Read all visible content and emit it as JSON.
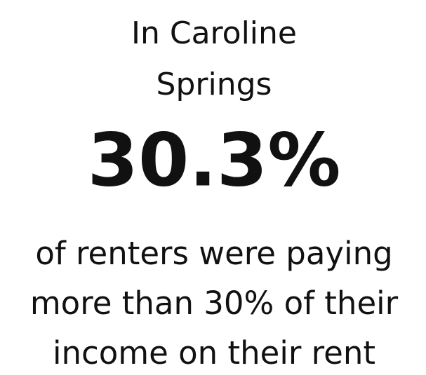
{
  "location_lines": [
    "In Caroline",
    "Springs"
  ],
  "statistic": "30.3%",
  "description_lines": [
    "of renters were paying",
    "more than 30% of their",
    "income on their rent"
  ]
}
